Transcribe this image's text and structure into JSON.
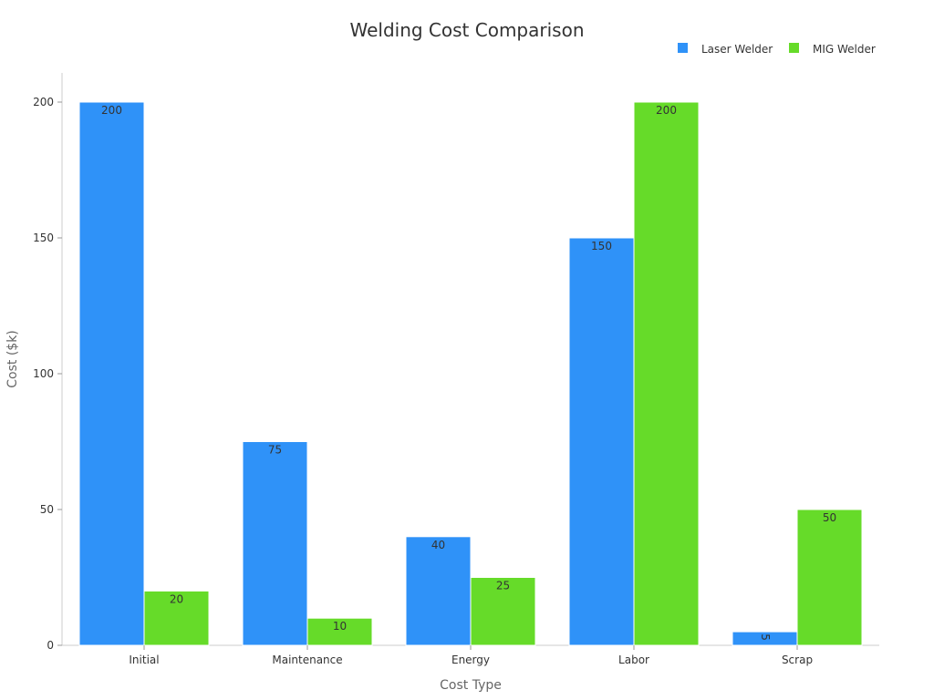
{
  "chart_data": {
    "type": "bar",
    "title": "Welding Cost Comparison",
    "xlabel": "Cost Type",
    "ylabel": "Cost ($k)",
    "categories": [
      "Initial",
      "Maintenance",
      "Energy",
      "Labor",
      "Scrap"
    ],
    "series": [
      {
        "name": "Laser Welder",
        "color": "#2f92f8",
        "values": [
          200,
          75,
          40,
          150,
          5
        ]
      },
      {
        "name": "MIG Welder",
        "color": "#66db29",
        "values": [
          20,
          10,
          25,
          200,
          50
        ]
      }
    ],
    "ylim": [
      0,
      200
    ],
    "yticks": [
      0,
      50,
      100,
      150,
      200
    ],
    "grid": false,
    "legend_position": "top-right"
  }
}
